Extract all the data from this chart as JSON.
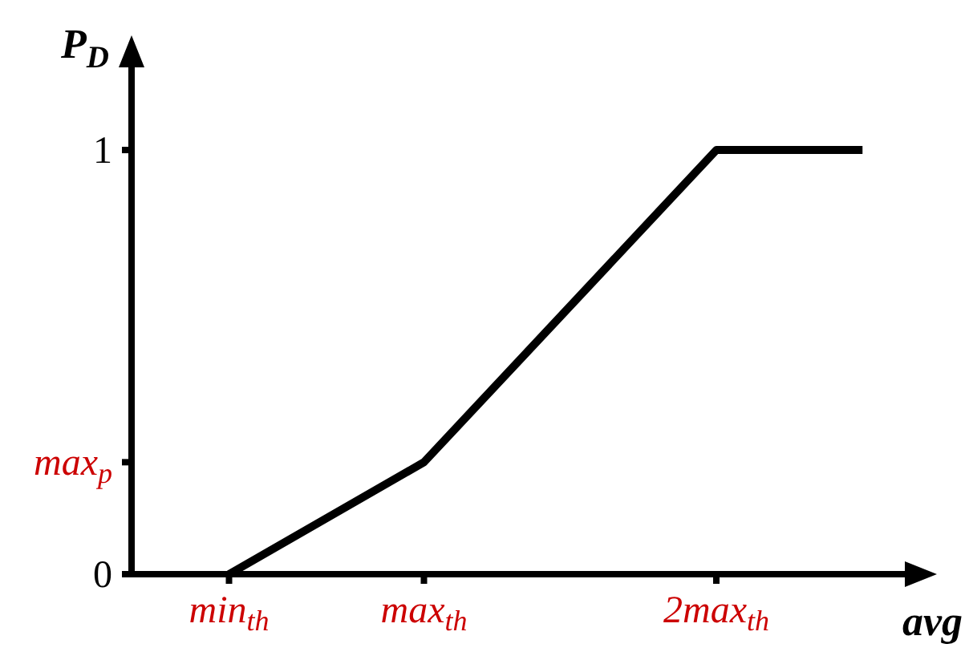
{
  "chart_data": {
    "type": "line",
    "xlabel": "avg",
    "ylabel": "P$_{D}$",
    "categories": [
      null,
      null,
      "min$_{th}$",
      null,
      null,
      null,
      "max$_{th}$",
      null,
      null,
      null,
      null,
      null,
      "2max$_{th}$",
      null,
      null,
      null,
      null
    ],
    "series": [
      {
        "color": "#000000",
        "values": [
          null,
          null,
          0,
          null,
          null,
          null,
          0.264,
          null,
          null,
          null,
          null,
          null,
          1,
          null,
          null,
          1,
          null
        ]
      }
    ],
    "ylim": [
      0,
      1.21
    ],
    "yticks": [
      {
        "value": 0,
        "label": "0"
      },
      {
        "value": 0.264,
        "label": "max$_{p}$"
      },
      {
        "value": 1,
        "label": "1"
      }
    ],
    "grid": false,
    "legend": false,
    "marker": "none",
    "line_style": "solid"
  }
}
